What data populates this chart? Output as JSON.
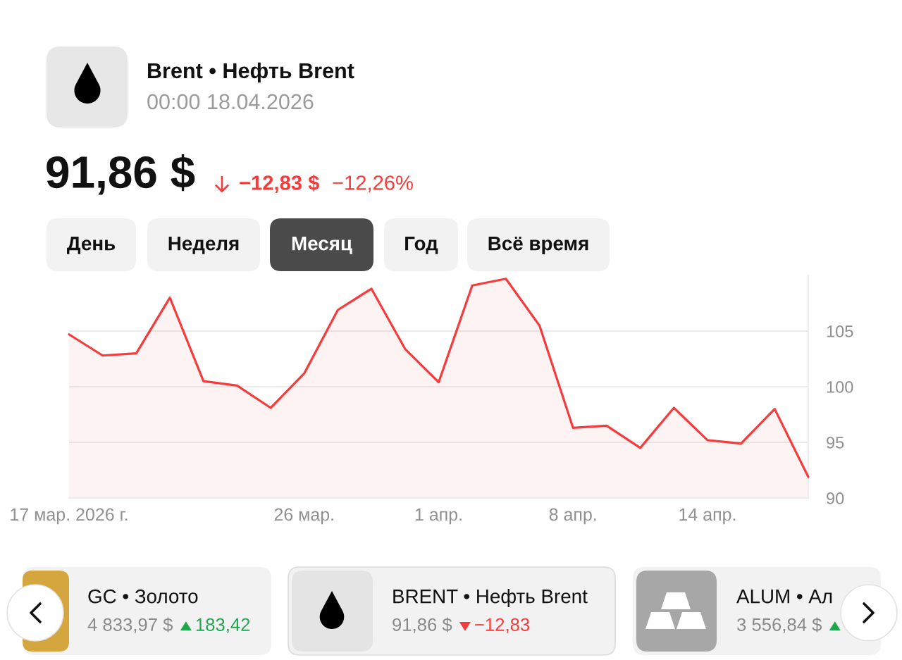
{
  "chart_data": {
    "type": "area",
    "title": "Brent • Нефть Brent",
    "subtitle": "00:00 18.04.2026",
    "categories": [
      "17 мар. 2026 г.",
      null,
      null,
      null,
      null,
      null,
      null,
      "26 мар.",
      null,
      null,
      null,
      "1 апр.",
      null,
      null,
      null,
      "8 апр.",
      null,
      null,
      null,
      "14 апр.",
      null,
      null,
      null
    ],
    "series": [
      {
        "color": "#f53b3b",
        "values": [
          104.7,
          102.8,
          103.0,
          108.0,
          100.5,
          100.1,
          98.1,
          101.2,
          106.9,
          108.8,
          103.4,
          100.4,
          109.1,
          109.7,
          105.5,
          96.3,
          96.5,
          94.5,
          98.1,
          95.2,
          94.9,
          98.0,
          91.9
        ]
      }
    ],
    "ylim": [
      90,
      110
    ],
    "yticks": [
      90,
      95,
      100,
      105
    ],
    "grid": "y",
    "annotations": [
      "91,86 $",
      "−12,83 $",
      "−12,26%",
      "День",
      "Неделя",
      "Месяц",
      "Год",
      "Всё время",
      "GC • Золото",
      "4 833,97 $",
      "183,42",
      "BRENT • Нефть Brent",
      "91,86 $",
      "−12,83",
      "ALUM • Ал",
      "3 556,84 $"
    ]
  }
}
